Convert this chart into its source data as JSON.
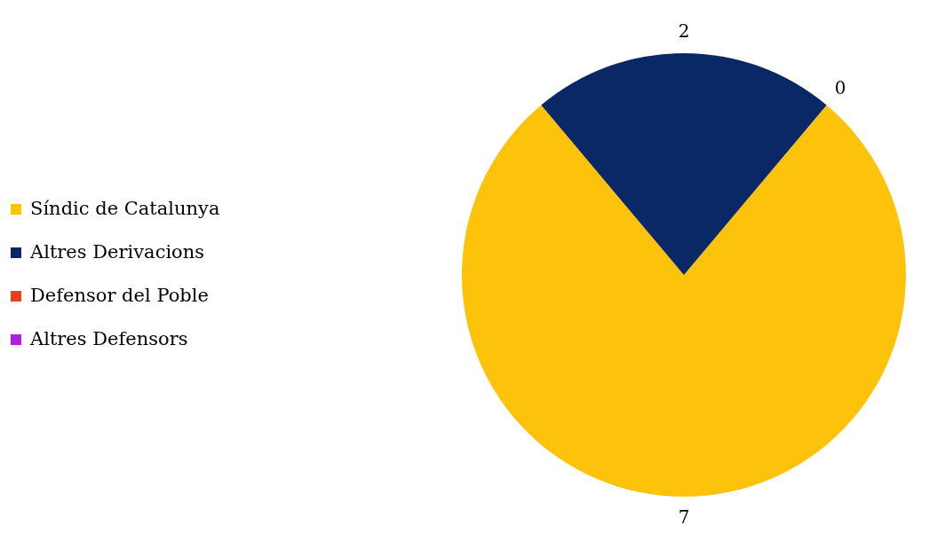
{
  "chart_data": {
    "type": "pie",
    "categories": [
      "Síndic de Catalunya",
      "Altres Derivacions",
      "Defensor del Poble",
      "Altres Defensors"
    ],
    "values": [
      7,
      2,
      0,
      0
    ],
    "colors": [
      "#fdc20a",
      "#0a2866",
      "#e8401c",
      "#b01ee0"
    ],
    "value_labels": [
      "7",
      "2",
      "0",
      null
    ],
    "legend": "left"
  }
}
